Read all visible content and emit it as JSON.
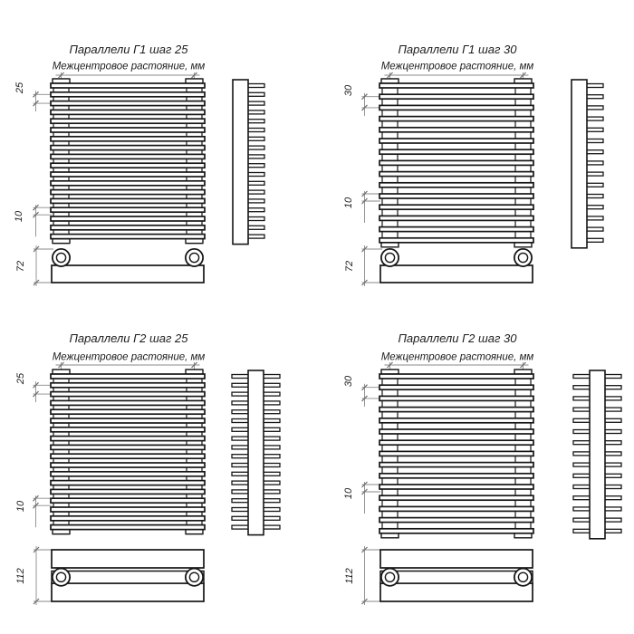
{
  "drawing": {
    "background": "#ffffff",
    "line_color": "#161616",
    "dim_line_color": "#8a8a8a"
  },
  "diagrams": [
    {
      "id": "g1-step-25",
      "title": "Параллели Г1 шаг 25",
      "subtitle": "Межцентровое растояние, мм",
      "step_dimension": "25",
      "tube_dimension": "10",
      "depth_dimension": "72",
      "bar_count": 18,
      "tube_sides": 1
    },
    {
      "id": "g1-step-30",
      "title": "Параллели Г1 шаг 30",
      "subtitle": "Межцентровое растояние, мм",
      "step_dimension": "30",
      "tube_dimension": "10",
      "depth_dimension": "72",
      "bar_count": 15,
      "tube_sides": 1
    },
    {
      "id": "g2-step-25",
      "title": "Параллели Г2 шаг 25",
      "subtitle": "Межцентровое растояние, мм",
      "step_dimension": "25",
      "tube_dimension": "10",
      "depth_dimension": "112",
      "bar_count": 18,
      "tube_sides": 2
    },
    {
      "id": "g2-step-30",
      "title": "Параллели Г2 шаг 30",
      "subtitle": "Межцентровое растояние, мм",
      "step_dimension": "30",
      "tube_dimension": "10",
      "depth_dimension": "112",
      "bar_count": 15,
      "tube_sides": 2
    }
  ]
}
